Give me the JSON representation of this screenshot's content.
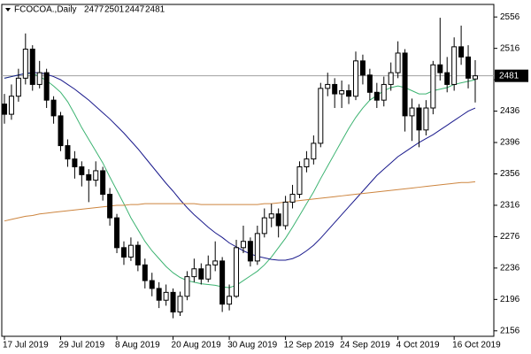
{
  "chart_data": {
    "type": "candlestick",
    "symbol": "FCOCOA.,Daily",
    "categories": [
      "17 Jul 2019",
      null,
      null,
      null,
      null,
      null,
      null,
      null,
      "29 Jul 2019",
      null,
      null,
      null,
      null,
      null,
      null,
      null,
      "8 Aug 2019",
      null,
      null,
      null,
      null,
      null,
      null,
      null,
      "20 Aug 2019",
      null,
      null,
      null,
      null,
      null,
      null,
      null,
      "30 Aug 2019",
      null,
      null,
      null,
      null,
      null,
      null,
      null,
      "12 Sep 2019",
      null,
      null,
      null,
      null,
      null,
      null,
      null,
      "24 Sep 2019",
      null,
      null,
      null,
      null,
      null,
      null,
      null,
      "4 Oct 2019",
      null,
      null,
      null,
      null,
      null,
      null,
      null,
      "16 Oct 2019",
      null,
      null,
      null
    ],
    "open": [
      2445,
      2432,
      2455,
      2478,
      2515,
      2470,
      2485,
      2450,
      2430,
      2392,
      2375,
      2365,
      2355,
      2348,
      2360,
      2330,
      2300,
      2262,
      2250,
      2265,
      2240,
      2220,
      2210,
      2195,
      2205,
      2180,
      2200,
      2225,
      2235,
      2222,
      2240,
      2245,
      2190,
      2200,
      2262,
      2270,
      2245,
      2280,
      2300,
      2305,
      2290,
      2320,
      2330,
      2365,
      2375,
      2395,
      2465,
      2470,
      2458,
      2462,
      2455,
      2500,
      2482,
      2460,
      2450,
      2470,
      2485,
      2510,
      2430,
      2440,
      2412,
      2440,
      2495,
      2485,
      2470,
      2518,
      2505,
      2477
    ],
    "high": [
      2458,
      2470,
      2490,
      2535,
      2520,
      2500,
      2490,
      2455,
      2435,
      2400,
      2385,
      2372,
      2362,
      2372,
      2365,
      2338,
      2305,
      2270,
      2275,
      2270,
      2248,
      2230,
      2218,
      2215,
      2210,
      2206,
      2232,
      2248,
      2242,
      2252,
      2270,
      2250,
      2215,
      2272,
      2290,
      2275,
      2290,
      2312,
      2318,
      2312,
      2328,
      2342,
      2372,
      2385,
      2405,
      2472,
      2485,
      2478,
      2475,
      2470,
      2512,
      2508,
      2490,
      2472,
      2480,
      2498,
      2525,
      2515,
      2452,
      2445,
      2450,
      2500,
      2555,
      2505,
      2530,
      2545,
      2520,
      2501
    ],
    "low": [
      2420,
      2425,
      2448,
      2470,
      2462,
      2465,
      2440,
      2420,
      2385,
      2365,
      2350,
      2340,
      2320,
      2340,
      2322,
      2290,
      2255,
      2240,
      2245,
      2232,
      2210,
      2200,
      2185,
      2188,
      2172,
      2175,
      2195,
      2218,
      2215,
      2218,
      2232,
      2180,
      2182,
      2198,
      2255,
      2238,
      2240,
      2275,
      2288,
      2275,
      2285,
      2312,
      2325,
      2358,
      2368,
      2390,
      2455,
      2440,
      2440,
      2445,
      2450,
      2470,
      2450,
      2440,
      2442,
      2462,
      2478,
      2410,
      2398,
      2390,
      2405,
      2432,
      2475,
      2460,
      2462,
      2495,
      2465,
      2447
    ],
    "close": [
      2432,
      2455,
      2478,
      2515,
      2470,
      2485,
      2450,
      2430,
      2392,
      2375,
      2365,
      2355,
      2348,
      2360,
      2330,
      2300,
      2262,
      2250,
      2265,
      2240,
      2220,
      2210,
      2195,
      2205,
      2180,
      2200,
      2225,
      2235,
      2222,
      2240,
      2245,
      2190,
      2200,
      2262,
      2270,
      2245,
      2280,
      2300,
      2305,
      2290,
      2320,
      2330,
      2365,
      2375,
      2395,
      2465,
      2470,
      2458,
      2462,
      2455,
      2500,
      2482,
      2460,
      2450,
      2470,
      2485,
      2510,
      2430,
      2440,
      2412,
      2440,
      2495,
      2485,
      2470,
      2518,
      2505,
      2478,
      2481
    ],
    "up_color": "#ffffff",
    "down_color": "#000000",
    "price_line_color": "#a0a0a0",
    "lines": [
      {
        "color": "#3cb371",
        "values": [
          2478,
          2480,
          2482,
          2484,
          2484,
          2480,
          2475,
          2468,
          2460,
          2448,
          2432,
          2415,
          2400,
          2385,
          2370,
          2352,
          2335,
          2318,
          2300,
          2285,
          2270,
          2258,
          2248,
          2238,
          2230,
          2224,
          2220,
          2218,
          2216,
          2215,
          2214,
          2212,
          2211,
          2214,
          2220,
          2226,
          2232,
          2240,
          2250,
          2262,
          2274,
          2288,
          2303,
          2318,
          2333,
          2350,
          2366,
          2382,
          2398,
          2414,
          2428,
          2440,
          2450,
          2456,
          2462,
          2466,
          2468,
          2466,
          2462,
          2458,
          2458,
          2462,
          2464,
          2466,
          2470,
          2472,
          2474,
          2476
        ]
      },
      {
        "color": "#1a1a8c",
        "values": [
          2478,
          2480,
          2482,
          2484,
          2485,
          2485,
          2483,
          2480,
          2476,
          2470,
          2464,
          2457,
          2450,
          2442,
          2434,
          2426,
          2417,
          2408,
          2398,
          2388,
          2377,
          2366,
          2355,
          2344,
          2334,
          2323,
          2313,
          2304,
          2296,
          2288,
          2281,
          2275,
          2268,
          2263,
          2258,
          2254,
          2251,
          2249,
          2247,
          2246,
          2246,
          2248,
          2252,
          2258,
          2265,
          2274,
          2284,
          2294,
          2304,
          2314,
          2324,
          2334,
          2344,
          2354,
          2362,
          2370,
          2378,
          2384,
          2390,
          2396,
          2401,
          2406,
          2412,
          2418,
          2424,
          2430,
          2436,
          2440
        ]
      },
      {
        "color": "#cd853f",
        "values": [
          2296,
          2298,
          2300,
          2302,
          2303,
          2305,
          2306,
          2307,
          2308,
          2309,
          2310,
          2311,
          2312,
          2313,
          2314,
          2315,
          2316,
          2316,
          2317,
          2317,
          2318,
          2318,
          2318,
          2318,
          2318,
          2318,
          2318,
          2318,
          2317,
          2317,
          2317,
          2317,
          2317,
          2317,
          2317,
          2317,
          2317,
          2318,
          2318,
          2319,
          2320,
          2321,
          2322,
          2323,
          2324,
          2325,
          2326,
          2327,
          2328,
          2329,
          2330,
          2331,
          2332,
          2333,
          2334,
          2335,
          2336,
          2337,
          2338,
          2339,
          2340,
          2341,
          2342,
          2343,
          2344,
          2345,
          2345,
          2346
        ]
      }
    ],
    "ylim": [
      2149,
      2572
    ],
    "yticks": [
      2156,
      2196,
      2236,
      2276,
      2316,
      2356,
      2396,
      2436,
      2476,
      2516,
      2556
    ]
  }
}
